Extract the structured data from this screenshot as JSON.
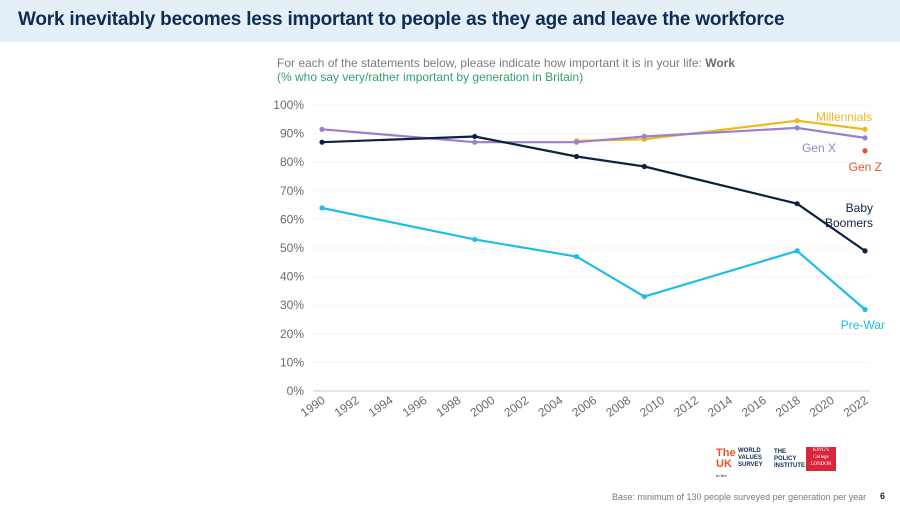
{
  "header": {
    "title": "Work inevitably becomes less important to people as they age and leave the workforce"
  },
  "subtitle": {
    "line1_prefix": "For each of the statements below, please indicate how important it is in your life: ",
    "line1_bold": "Work",
    "line2": "(% who say very/rather important by generation in Britain)"
  },
  "chart_data": {
    "type": "line",
    "xlabel": "",
    "ylabel": "",
    "xlim": [
      1990,
      2022
    ],
    "ylim": [
      0,
      100
    ],
    "x_ticks": [
      1990,
      1992,
      1994,
      1996,
      1998,
      2000,
      2002,
      2004,
      2006,
      2008,
      2010,
      2012,
      2014,
      2016,
      2018,
      2020,
      2022
    ],
    "y_ticks": [
      0,
      10,
      20,
      30,
      40,
      50,
      60,
      70,
      80,
      90,
      100
    ],
    "y_tick_labels": [
      "0%",
      "10%",
      "20%",
      "30%",
      "40%",
      "50%",
      "60%",
      "70%",
      "80%",
      "90%",
      "100%"
    ],
    "grid": true,
    "series": [
      {
        "name": "Millennials",
        "label_lines": [
          "Millennials"
        ],
        "color": "#f0b820",
        "points": [
          [
            2005,
            87.5
          ],
          [
            2009,
            88
          ],
          [
            2018,
            94.5
          ],
          [
            2022,
            91.5
          ]
        ]
      },
      {
        "name": "Gen X",
        "label_lines": [
          "Gen X"
        ],
        "color": "#9b7fcf",
        "points": [
          [
            1990,
            91.5
          ],
          [
            1999,
            87
          ],
          [
            2005,
            87
          ],
          [
            2009,
            89
          ],
          [
            2018,
            92
          ],
          [
            2022,
            88.5
          ]
        ]
      },
      {
        "name": "Gen Z",
        "label_lines": [
          "Gen Z"
        ],
        "color": "#e8542a",
        "points": [
          [
            2022,
            84
          ]
        ]
      },
      {
        "name": "Baby Boomers",
        "label_lines": [
          "Baby",
          "Boomers"
        ],
        "color": "#0d2240",
        "points": [
          [
            1990,
            87
          ],
          [
            1999,
            89
          ],
          [
            2005,
            82
          ],
          [
            2009,
            78.5
          ],
          [
            2018,
            65.5
          ],
          [
            2022,
            49
          ]
        ]
      },
      {
        "name": "Pre-War",
        "label_lines": [
          "Pre-War"
        ],
        "color": "#1ebde8",
        "points": [
          [
            1990,
            64
          ],
          [
            1999,
            53
          ],
          [
            2005,
            47
          ],
          [
            2009,
            33
          ],
          [
            2018,
            49
          ],
          [
            2022,
            28.5
          ]
        ]
      }
    ]
  },
  "logos": {
    "uk_big": "The UK",
    "uk_small": "in the",
    "wvs": [
      "WORLD",
      "VALUES",
      "SURVEY"
    ],
    "tpi": [
      "THE",
      "POLICY",
      "INSTITUTE"
    ],
    "kcl": [
      "KING'S",
      "College",
      "LONDON"
    ]
  },
  "footer": {
    "note": "Base: minimum of 130 people surveyed per generation per year",
    "page": "6"
  }
}
